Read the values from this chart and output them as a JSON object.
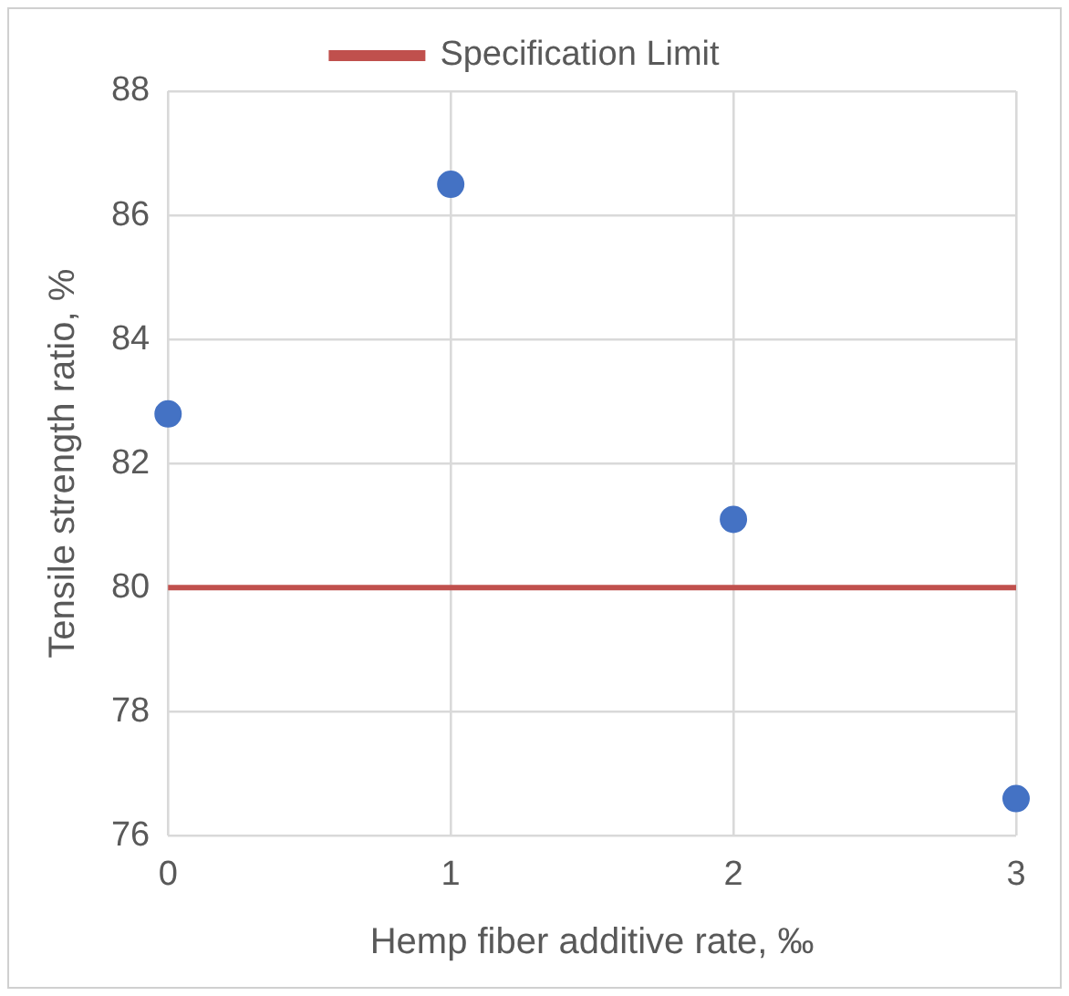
{
  "chart_data": {
    "type": "scatter",
    "xlabel": "Hemp fiber additive rate, ‰",
    "ylabel": "Tensile strength ratio, %",
    "x": [
      0,
      1,
      2,
      3
    ],
    "series": [
      {
        "color": "#4472c4",
        "values": [
          82.8,
          86.5,
          81.1,
          76.6
        ]
      }
    ],
    "xlim": [
      0,
      3
    ],
    "xticks": [
      0,
      1,
      2,
      3
    ],
    "ylim": [
      76,
      88
    ],
    "yticks": [
      76,
      78,
      80,
      82,
      84,
      86,
      88
    ],
    "ref_lines": [
      {
        "axis": "y",
        "value": 80,
        "label": "Specification Limit",
        "color": "#c0504d"
      }
    ],
    "grid": true,
    "legend": "top",
    "marker": "circle"
  }
}
